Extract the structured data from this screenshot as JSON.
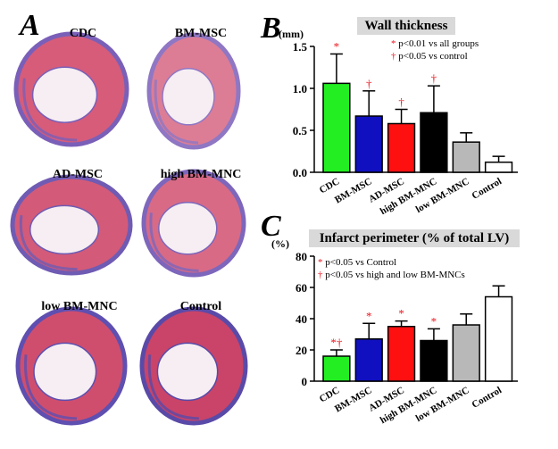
{
  "panel_a": {
    "letter": "A",
    "sections": [
      {
        "label": "CDC",
        "tissue": "#d65c7a",
        "rim": "#7a5fb8"
      },
      {
        "label": "BM-MSC",
        "tissue": "#dc7d95",
        "rim": "#8f77c4"
      },
      {
        "label": "AD-MSC",
        "tissue": "#d35a78",
        "rim": "#6f5bb3"
      },
      {
        "label": "high BM-MNC",
        "tissue": "#d86a86",
        "rim": "#7d66bb"
      },
      {
        "label": "low BM-MNC",
        "tissue": "#cf4e6e",
        "rim": "#5e4fb0"
      },
      {
        "label": "Control",
        "tissue": "#c94468",
        "rim": "#5a4aa8"
      }
    ]
  },
  "chart_data": [
    {
      "type": "bar",
      "panel": "B",
      "title": "Wall thickness",
      "unit": "(mm)",
      "categories": [
        "CDC",
        "BM-MSC",
        "AD-MSC",
        "high BM-MNC",
        "low BM-MNC",
        "Control"
      ],
      "values": [
        1.06,
        0.67,
        0.58,
        0.71,
        0.36,
        0.12
      ],
      "errors": [
        0.35,
        0.3,
        0.17,
        0.32,
        0.11,
        0.07
      ],
      "colors": [
        "#22ee22",
        "#1010c0",
        "#ff1010",
        "#000000",
        "#b8b8b8",
        "#ffffff"
      ],
      "markers": [
        "*",
        "†",
        "†",
        "†",
        "",
        ""
      ],
      "ylim": [
        0,
        1.5
      ],
      "yticks": [
        "0.0",
        "0.5",
        "1.0",
        "1.5"
      ],
      "legend": [
        {
          "symbol": "*",
          "text": "p<0.01 vs all groups"
        },
        {
          "symbol": "†",
          "text": "p<0.05 vs control"
        }
      ]
    },
    {
      "type": "bar",
      "panel": "C",
      "title": "Infarct perimeter (% of total LV)",
      "unit": "(%)",
      "categories": [
        "CDC",
        "BM-MSC",
        "AD-MSC",
        "high BM-MNC",
        "low BM-MNC",
        "Control"
      ],
      "values": [
        16,
        27,
        35,
        26,
        36,
        54
      ],
      "errors": [
        4,
        10,
        3.5,
        7.5,
        7,
        7
      ],
      "colors": [
        "#22ee22",
        "#1010c0",
        "#ff1010",
        "#000000",
        "#b8b8b8",
        "#ffffff"
      ],
      "markers": [
        "*†",
        "*",
        "*",
        "*",
        "",
        ""
      ],
      "ylim": [
        0,
        80
      ],
      "yticks": [
        "0",
        "20",
        "40",
        "60",
        "80"
      ],
      "legend": [
        {
          "symbol": "*",
          "text": "p<0.05 vs Control"
        },
        {
          "symbol": "†",
          "text": "p<0.05 vs high and low BM-MNCs"
        }
      ]
    }
  ]
}
